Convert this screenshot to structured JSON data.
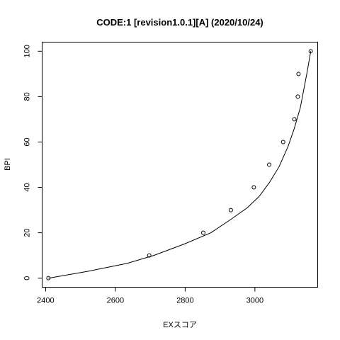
{
  "chart_data": {
    "type": "scatter",
    "title": "CODE:1 [revision1.0.1][A] (2020/10/24)",
    "xlabel": "EXスコア",
    "ylabel": "BPI",
    "xlim": [
      2390,
      3180
    ],
    "ylim": [
      -4,
      104
    ],
    "x_ticks": [
      2400,
      2600,
      2800,
      3000
    ],
    "y_ticks": [
      0,
      20,
      40,
      60,
      80,
      100
    ],
    "points": [
      {
        "x": 2408,
        "y": 0
      },
      {
        "x": 2697,
        "y": 10
      },
      {
        "x": 2852,
        "y": 20
      },
      {
        "x": 2931,
        "y": 30
      },
      {
        "x": 2997,
        "y": 40
      },
      {
        "x": 3041,
        "y": 50
      },
      {
        "x": 3081,
        "y": 60
      },
      {
        "x": 3113,
        "y": 70
      },
      {
        "x": 3123,
        "y": 80
      },
      {
        "x": 3125,
        "y": 90
      },
      {
        "x": 3160,
        "y": 100
      }
    ],
    "curve": [
      {
        "x": 2408,
        "y": 0
      },
      {
        "x": 2520,
        "y": 3
      },
      {
        "x": 2633,
        "y": 6.5
      },
      {
        "x": 2710,
        "y": 10
      },
      {
        "x": 2797,
        "y": 15
      },
      {
        "x": 2874,
        "y": 20
      },
      {
        "x": 2932,
        "y": 26
      },
      {
        "x": 2978,
        "y": 31
      },
      {
        "x": 3012,
        "y": 36
      },
      {
        "x": 3041,
        "y": 42
      },
      {
        "x": 3069,
        "y": 49
      },
      {
        "x": 3095,
        "y": 58
      },
      {
        "x": 3113,
        "y": 66
      },
      {
        "x": 3130,
        "y": 75
      },
      {
        "x": 3140,
        "y": 83
      },
      {
        "x": 3150,
        "y": 91
      },
      {
        "x": 3160,
        "y": 100
      }
    ]
  }
}
